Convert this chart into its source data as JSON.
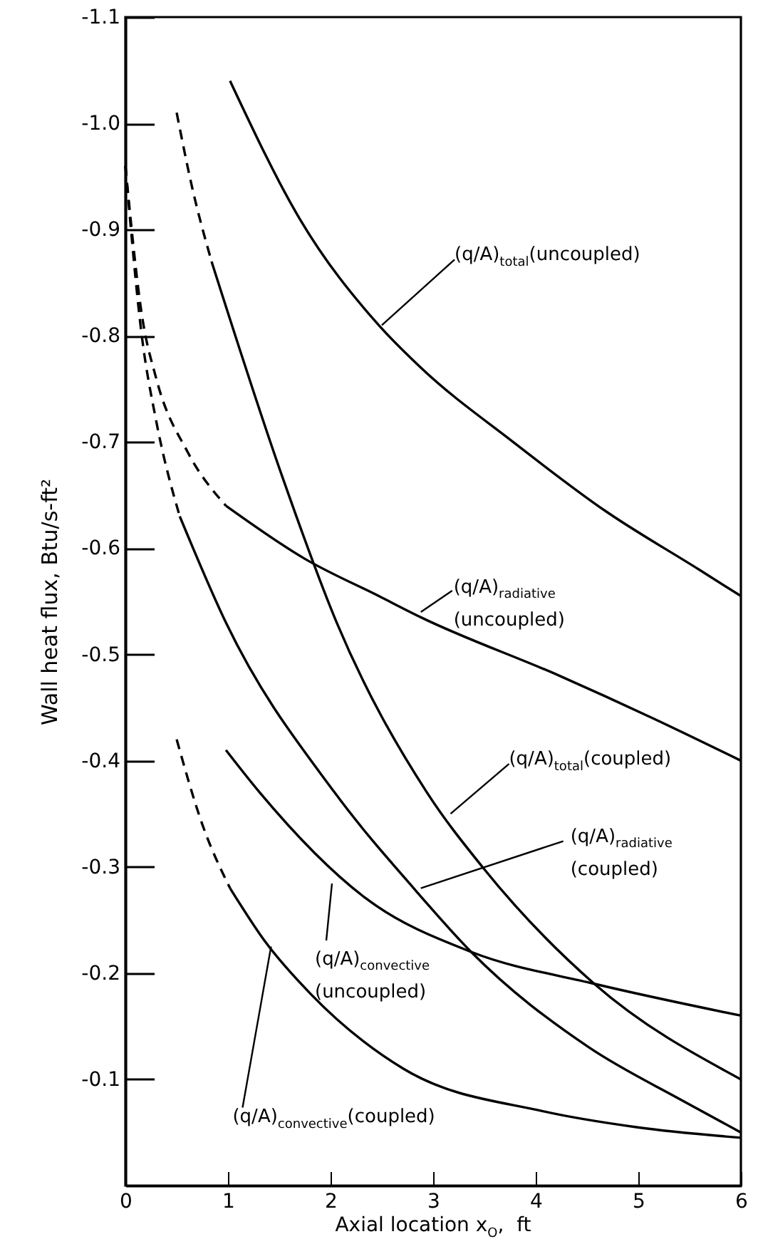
{
  "chart_data": {
    "type": "line",
    "xlabel": "Axial location x$_{O}$,  ft",
    "ylabel": "Wall heat flux,  Btu/s-ft²",
    "xlim": [
      0,
      6
    ],
    "xticks": [
      0,
      1,
      2,
      3,
      4,
      5,
      6
    ],
    "ylim": [
      0,
      -1.1
    ],
    "yticks": [
      -0.1,
      -0.2,
      -0.3,
      -0.4,
      -0.5,
      -0.6,
      -0.7,
      -0.8,
      -0.9,
      {
        "value": -1,
        "label": "-1.0"
      },
      -1.1
    ],
    "grid": false,
    "series": [
      {
        "color": "#000000",
        "line_style": "solid",
        "x": [
          1.02,
          1.7,
          2.47,
          2.88,
          3.78,
          4.68,
          5.59,
          6
        ],
        "values": [
          -1.04,
          -0.91,
          -0.81,
          -0.77,
          -0.7,
          -0.635,
          -0.58,
          -0.555
        ]
      },
      {
        "color": "#000000",
        "line_style": "dashed",
        "x": [
          0,
          0.16,
          0.3,
          0.61,
          0.98
        ],
        "values": [
          -0.96,
          -0.82,
          -0.76,
          -0.69,
          -0.64
        ]
      },
      {
        "color": "#000000",
        "line_style": "solid",
        "x": [
          0.98,
          1.75,
          2.47,
          2.88,
          4.23,
          5.14,
          6
        ],
        "values": [
          -0.64,
          -0.59,
          -0.555,
          -0.535,
          -0.48,
          -0.44,
          -0.4
        ]
      },
      {
        "color": "#000000",
        "line_style": "dashed",
        "x": [
          0.5,
          0.65,
          0.84
        ],
        "values": [
          -1.01,
          -0.94,
          -0.87
        ]
      },
      {
        "color": "#000000",
        "line_style": "solid",
        "x": [
          0.84,
          1.52,
          2.06,
          2.94,
          3.48,
          4.57,
          6
        ],
        "values": [
          -0.87,
          -0.67,
          -0.53,
          -0.37,
          -0.3,
          -0.19,
          -0.1
        ]
      },
      {
        "color": "#000000",
        "line_style": "dashed",
        "x": [
          0,
          0.16,
          0.3,
          0.53
        ],
        "values": [
          -0.96,
          -0.8,
          -0.72,
          -0.63
        ]
      },
      {
        "color": "#000000",
        "line_style": "solid",
        "x": [
          0.53,
          0.98,
          2.04,
          2.81,
          3.37,
          4.52,
          5.43,
          6
        ],
        "values": [
          -0.63,
          -0.53,
          -0.37,
          -0.28,
          -0.22,
          -0.13,
          -0.08,
          -0.05
        ]
      },
      {
        "color": "#000000",
        "line_style": "solid",
        "x": [
          0.98,
          1.31,
          2.35,
          3.37,
          4.57,
          6
        ],
        "values": [
          -0.41,
          -0.37,
          -0.27,
          -0.22,
          -0.19,
          -0.16
        ]
      },
      {
        "color": "#000000",
        "line_style": "dashed",
        "x": [
          0.5,
          0.75,
          1.02
        ],
        "values": [
          -0.42,
          -0.34,
          -0.28
        ]
      },
      {
        "color": "#000000",
        "line_style": "solid",
        "x": [
          1.02,
          1.36,
          1.81,
          2.71,
          4.07,
          4.98,
          6
        ],
        "values": [
          -0.28,
          -0.23,
          -0.18,
          -0.11,
          -0.07,
          -0.055,
          -0.045
        ]
      }
    ],
    "annotations": [
      {
        "text": "(q/A)$_{total}$(uncoupled)",
        "x": 2.5,
        "y": -0.81
      },
      {
        "text": "(q/A)$_{radiative}$\n(uncoupled)",
        "x": 2.88,
        "y": -0.54
      },
      {
        "text": "(q/A)$_{total}$(coupled)",
        "x": 3.17,
        "y": -0.35
      },
      {
        "text": "(q/A)$_{radiative}$\n(coupled)",
        "x": 2.88,
        "y": -0.28
      },
      "(q/A)$_{convective}$\n(uncoupled)",
      {
        "text": "(q/A)$_{convective}$(coupled)",
        "x": 1.42,
        "y": -0.225
      }
    ]
  }
}
